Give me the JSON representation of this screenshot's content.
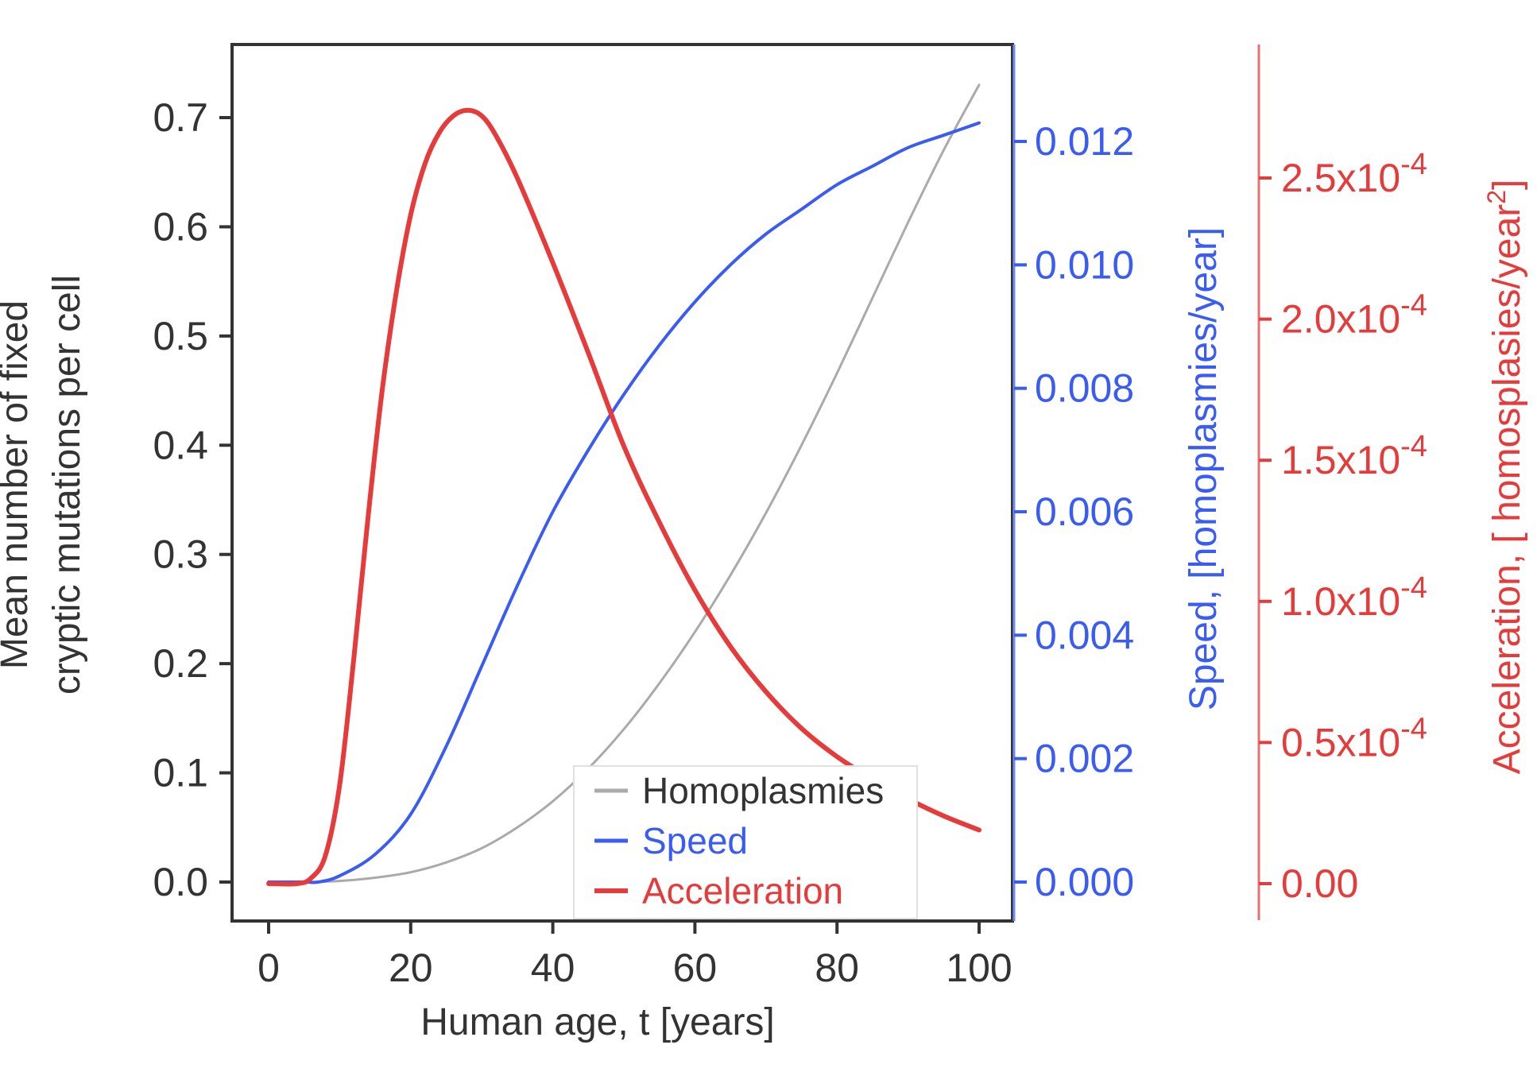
{
  "chart_data": {
    "type": "line",
    "xlabel": "Human age, t [years]",
    "xlim": [
      0,
      100
    ],
    "xticks": [
      0,
      20,
      40,
      60,
      80,
      100
    ],
    "y_left": {
      "label_lines": [
        "Mean number of fixed",
        "cryptic mutations per cell"
      ],
      "ylim": [
        0.0,
        0.7
      ],
      "ticks": [
        "0.0",
        "0.1",
        "0.2",
        "0.3",
        "0.4",
        "0.5",
        "0.6",
        "0.7"
      ],
      "color": "#333333"
    },
    "y_speed": {
      "label": "Speed, [homoplasmies/year]",
      "ylim": [
        0.0,
        0.012
      ],
      "ticks": [
        "0.000",
        "0.002",
        "0.004",
        "0.006",
        "0.008",
        "0.010",
        "0.012"
      ],
      "color": "#3a5cf5"
    },
    "y_accel": {
      "label": "Acceleration, [ homosplasies/year",
      "label_sup": "2",
      "label_end": "]",
      "ylim": [
        0.0,
        0.00025
      ],
      "ticks": [
        {
          "base": "0.00",
          "exp": ""
        },
        {
          "base": "0.5x10",
          "exp": "-4"
        },
        {
          "base": "1.0x10",
          "exp": "-4"
        },
        {
          "base": "1.5x10",
          "exp": "-4"
        },
        {
          "base": "2.0x10",
          "exp": "-4"
        },
        {
          "base": "2.5x10",
          "exp": "-4"
        }
      ],
      "color": "#e53b3b"
    },
    "legend": {
      "placement": "bottom-right",
      "entries": [
        "Homoplasmies",
        "Speed",
        "Acceleration"
      ]
    },
    "series": [
      {
        "name": "Homoplasmies",
        "axis": "left",
        "color": "#aaaaaa",
        "x": [
          0,
          5,
          10,
          15,
          20,
          25,
          30,
          35,
          40,
          45,
          50,
          55,
          60,
          65,
          70,
          75,
          80,
          85,
          90,
          95,
          100
        ],
        "y": [
          0.0,
          0.0,
          0.001,
          0.004,
          0.009,
          0.018,
          0.031,
          0.05,
          0.074,
          0.104,
          0.14,
          0.182,
          0.229,
          0.281,
          0.338,
          0.4,
          0.466,
          0.535,
          0.604,
          0.67,
          0.73
        ]
      },
      {
        "name": "Speed",
        "axis": "speed",
        "color": "#3a5cf5",
        "x": [
          0,
          5,
          7,
          10,
          15,
          20,
          25,
          30,
          35,
          40,
          45,
          50,
          55,
          60,
          65,
          70,
          75,
          80,
          85,
          90,
          95,
          100
        ],
        "y": [
          0.0,
          0.0,
          0.0,
          0.0001,
          0.00045,
          0.0011,
          0.0022,
          0.0035,
          0.0048,
          0.006,
          0.007,
          0.0079,
          0.0087,
          0.0094,
          0.01,
          0.0105,
          0.0109,
          0.0113,
          0.0116,
          0.0119,
          0.0121,
          0.0123
        ]
      },
      {
        "name": "Acceleration",
        "axis": "accel",
        "color": "#e53b3b",
        "x": [
          0,
          4,
          6,
          8,
          10,
          12,
          14,
          16,
          18,
          20,
          22,
          24,
          26,
          28,
          30,
          32,
          35,
          40,
          45,
          50,
          55,
          60,
          65,
          70,
          75,
          80,
          85,
          90,
          95,
          100
        ],
        "y": [
          0.0,
          0.0,
          2e-06,
          1e-05,
          3.5e-05,
          8e-05,
          0.00013,
          0.000175,
          0.00021,
          0.000237,
          0.000255,
          0.000266,
          0.000272,
          0.000274,
          0.000272,
          0.000265,
          0.00025,
          0.00022,
          0.000188,
          0.000155,
          0.000128,
          0.000104,
          8.4e-05,
          6.8e-05,
          5.5e-05,
          4.5e-05,
          3.7e-05,
          3e-05,
          2.4e-05,
          1.9e-05
        ]
      }
    ]
  }
}
